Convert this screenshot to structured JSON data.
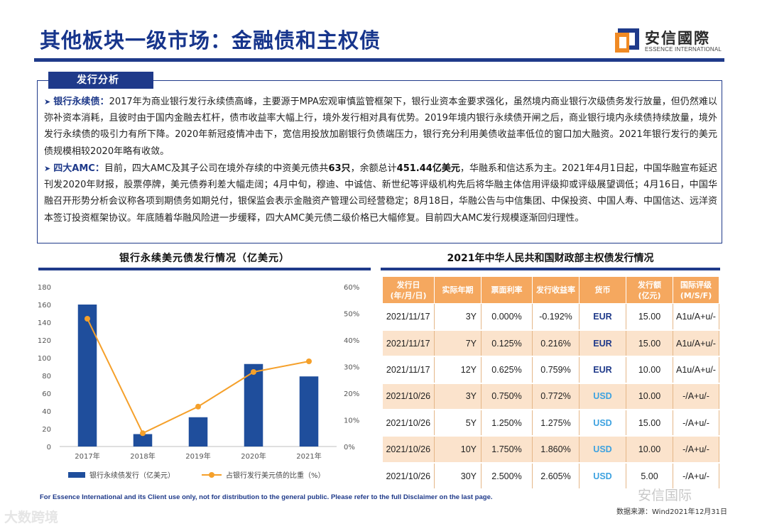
{
  "header": {
    "title": "其他板块一级市场：金融债和主权债",
    "logo_cn": "安信國際",
    "logo_en": "ESSENCE INTERNATIONAL",
    "colors": {
      "navy": "#1f3a8a",
      "orange": "#f5a85f",
      "logo_orange": "#f08a24"
    }
  },
  "analysis": {
    "tag": "发行分析",
    "p1": {
      "lead": "银行永续债：",
      "text": "2017年为商业银行发行永续债高峰，主要源于MPA宏观审慎监管框架下，银行业资本金要求强化，虽然境内商业银行次级债务发行放量，但仍然难以弥补资本消耗，且彼时由于国内金融去杠杆，债市收益率大幅上行，境外发行相对具有优势。2019年境内银行永续债开闸之后，商业银行境内永续债持续放量，境外发行永续债的吸引力有所下降。2020年新冠疫情冲击下，宽信用投放加剧银行负债端压力，银行充分利用美债收益率低位的窗口加大融资。2021年银行发行的美元债规模相较2020年略有收敛。"
    },
    "p2": {
      "lead": "四大AMC：",
      "t1": "目前，四大AMC及其子公司在境外存续的中资美元债共",
      "b1": "63只",
      "t2": "，余额总计",
      "b2": "451.44亿美元",
      "t3": "，华融系和信达系为主。2021年4月1日起，中国华融宣布延迟刊发2020年财报，股票停牌，美元债券利差大幅走阔；4月中旬，穆迪、中诚信、新世纪等评级机构先后将华融主体信用评级抑或评级展望调低；4月16日，中国华融召开形势分析会议称各项到期债务如期兑付，银保监会表示金融资产管理公司经营稳定；8月18日，华融公告与中信集团、中保投资、中国人寿、中国信达、远洋资本签订投资框架协议。年底随着华融风险进一步缓释，四大AMC美元债二级价格已大幅修复。目前四大AMC发行规模逐渐回归理性。"
    }
  },
  "chart_data": {
    "type": "bar",
    "title": "银行永续美元债发行情况（亿美元）",
    "categories": [
      "2017年",
      "2018年",
      "2019年",
      "2020年",
      "2021年"
    ],
    "series": [
      {
        "name": "银行永续债发行（亿美元）",
        "type": "bar",
        "axis": "left",
        "values": [
          160,
          14,
          33,
          93,
          79
        ],
        "color": "#1f4e9c"
      },
      {
        "name": "占银行发行美元债的比重（%）",
        "type": "line",
        "axis": "right",
        "values": [
          48,
          5,
          15,
          28,
          32
        ],
        "color": "#f5a02a"
      }
    ],
    "y_left": {
      "min": 0,
      "max": 180,
      "step": 20,
      "ticks": [
        "0",
        "20",
        "40",
        "60",
        "80",
        "100",
        "120",
        "140",
        "160",
        "180"
      ]
    },
    "y_right": {
      "min": 0,
      "max": 60,
      "step": 10,
      "ticks": [
        "0%",
        "10%",
        "20%",
        "30%",
        "40%",
        "50%",
        "60%"
      ]
    },
    "legend_position": "bottom"
  },
  "table": {
    "title": "2021年中华人民共和国财政部主权债发行情况",
    "headers": [
      "发行日\n(年/月/日)",
      "实际年期",
      "票面利率",
      "发行收益率",
      "货币",
      "发行额\n(亿元)",
      "国际评级\n(M/S/F)"
    ],
    "rows": [
      [
        "2021/11/17",
        "3Y",
        "0.000%",
        "-0.192%",
        "EUR",
        "15.00",
        "A1u/A+u/-"
      ],
      [
        "2021/11/17",
        "7Y",
        "0.125%",
        "0.216%",
        "EUR",
        "15.00",
        "A1u/A+u/-"
      ],
      [
        "2021/11/17",
        "12Y",
        "0.625%",
        "0.759%",
        "EUR",
        "10.00",
        "A1u/A+u/-"
      ],
      [
        "2021/10/26",
        "3Y",
        "0.750%",
        "0.772%",
        "USD",
        "10.00",
        "-/A+u/-"
      ],
      [
        "2021/10/26",
        "5Y",
        "1.250%",
        "1.275%",
        "USD",
        "15.00",
        "-/A+u/-"
      ],
      [
        "2021/10/26",
        "10Y",
        "1.750%",
        "1.860%",
        "USD",
        "10.00",
        "-/A+u/-"
      ],
      [
        "2021/10/26",
        "30Y",
        "2.500%",
        "2.605%",
        "USD",
        "5.00",
        "-/A+u/-"
      ]
    ]
  },
  "footer": {
    "disclaimer": "For Essence International and its Client use only, not for distribution to the general public. Please refer to the full Disclaimer on the last page.",
    "source": "数据来源：Wind2021年12月31日",
    "watermark_left": "大数跨境",
    "watermark_right": "安信国际"
  }
}
